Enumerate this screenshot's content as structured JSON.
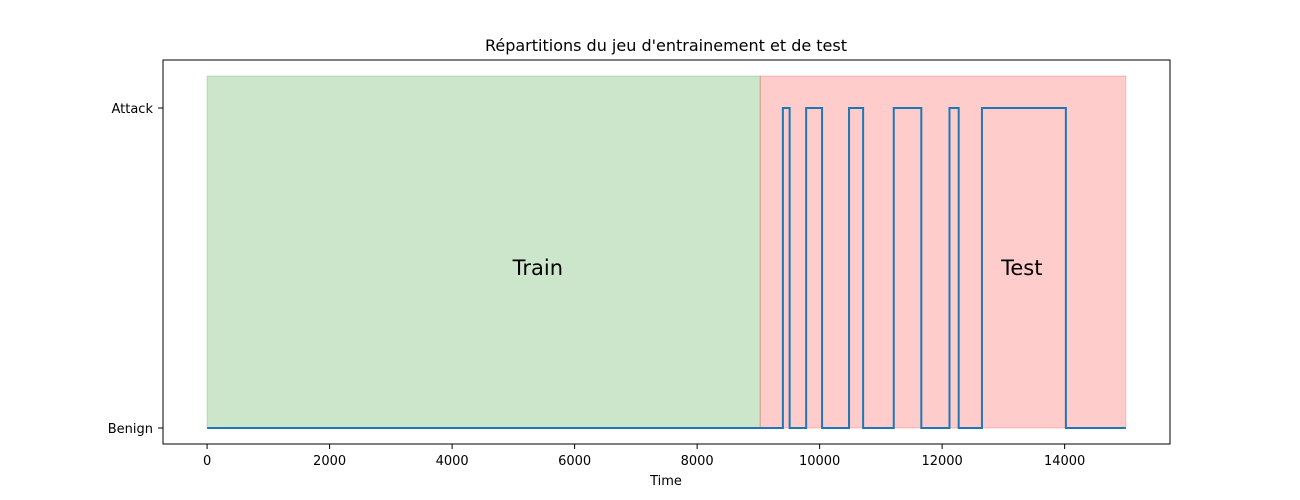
{
  "chart_data": {
    "type": "line",
    "title": "Répartitions du jeu d'entrainement et de test",
    "xlabel": "Time",
    "ylabel": "",
    "xlim": [
      -720,
      15720
    ],
    "ylim": [
      -0.05,
      1.15
    ],
    "x_ticks": [
      0,
      2000,
      4000,
      6000,
      8000,
      10000,
      12000,
      14000
    ],
    "x_tick_labels": [
      "0",
      "2000",
      "4000",
      "6000",
      "8000",
      "10000",
      "12000",
      "14000"
    ],
    "y_ticks": [
      0,
      1
    ],
    "y_tick_labels": [
      "Benign",
      "Attack"
    ],
    "grid": false,
    "regions": [
      {
        "label": "Train",
        "x_start": 0,
        "x_end": 9030,
        "y_start": 0,
        "y_end": 1.1,
        "color": "#008000",
        "alpha": 0.2,
        "label_x": 5400
      },
      {
        "label": "Test",
        "x_start": 9030,
        "x_end": 15000,
        "y_start": 0,
        "y_end": 1.1,
        "color": "#ff0000",
        "alpha": 0.2,
        "label_x": 13300
      }
    ],
    "series": [
      {
        "color": "#1f77b4",
        "step": true,
        "points": [
          [
            0,
            0
          ],
          [
            9400,
            0
          ],
          [
            9400,
            1
          ],
          [
            9510,
            1
          ],
          [
            9510,
            0
          ],
          [
            9780,
            0
          ],
          [
            9780,
            1
          ],
          [
            10040,
            1
          ],
          [
            10040,
            0
          ],
          [
            10480,
            0
          ],
          [
            10480,
            1
          ],
          [
            10710,
            1
          ],
          [
            10710,
            0
          ],
          [
            11210,
            0
          ],
          [
            11210,
            1
          ],
          [
            11660,
            1
          ],
          [
            11660,
            0
          ],
          [
            12120,
            0
          ],
          [
            12120,
            1
          ],
          [
            12270,
            1
          ],
          [
            12270,
            0
          ],
          [
            12650,
            0
          ],
          [
            12650,
            1
          ],
          [
            14020,
            1
          ],
          [
            14020,
            0
          ],
          [
            15000,
            0
          ]
        ]
      }
    ]
  }
}
